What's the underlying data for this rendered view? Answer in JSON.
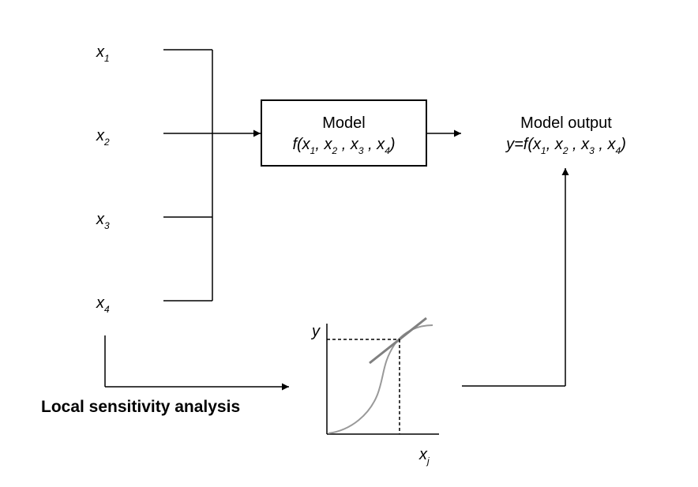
{
  "inputs": [
    {
      "var": "x",
      "sub": "1"
    },
    {
      "var": "x",
      "sub": "2"
    },
    {
      "var": "x",
      "sub": "3"
    },
    {
      "var": "x",
      "sub": "4"
    }
  ],
  "model_box": {
    "title": "Model",
    "func": "f(x",
    "s1": "1",
    "sep1": ", x",
    "s2": "2",
    "sep2": " , x",
    "s3": "3",
    "sep3": " , x",
    "s4": "4",
    "close": ")"
  },
  "output": {
    "title": "Model output",
    "func": "y=f(x",
    "s1": "1",
    "sep1": ", x",
    "s2": "2",
    "sep2": " , x",
    "s3": "3",
    "sep3": " , x",
    "s4": "4",
    "close": ")"
  },
  "inset_plot": {
    "y_label": "y",
    "x_label": "x",
    "x_sub": "j"
  },
  "analysis_label": "Local sensitivity analysis",
  "colors": {
    "line": "#000000",
    "curve": "#999999",
    "tangent": "#808080"
  }
}
